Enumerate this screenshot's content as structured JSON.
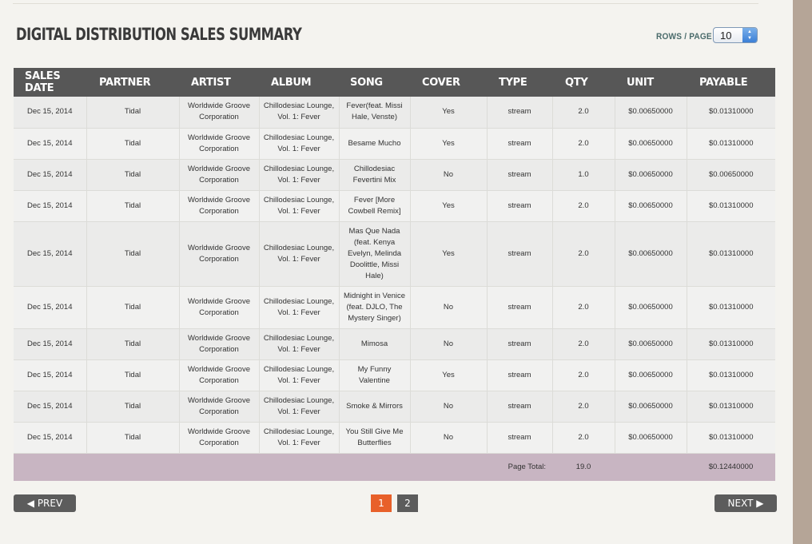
{
  "title": "DIGITAL DISTRIBUTION SALES SUMMARY",
  "rows_per_page": {
    "label": "ROWS / PAGE",
    "value": "10"
  },
  "columns": [
    "SALES DATE",
    "PARTNER",
    "ARTIST",
    "ALBUM",
    "SONG",
    "COVER",
    "TYPE",
    "QTY",
    "UNIT",
    "PAYABLE"
  ],
  "rows": [
    [
      "Dec 15, 2014",
      "Tidal",
      "Worldwide Groove Corporation",
      "Chillodesiac Lounge, Vol. 1: Fever",
      "Fever(feat. Missi Hale, Venste)",
      "Yes",
      "stream",
      "2.0",
      "$0.00650000",
      "$0.01310000"
    ],
    [
      "Dec 15, 2014",
      "Tidal",
      "Worldwide Groove Corporation",
      "Chillodesiac Lounge, Vol. 1: Fever",
      "Besame Mucho",
      "Yes",
      "stream",
      "2.0",
      "$0.00650000",
      "$0.01310000"
    ],
    [
      "Dec 15, 2014",
      "Tidal",
      "Worldwide Groove Corporation",
      "Chillodesiac Lounge, Vol. 1: Fever",
      "Chillodesiac Fevertini Mix",
      "No",
      "stream",
      "1.0",
      "$0.00650000",
      "$0.00650000"
    ],
    [
      "Dec 15, 2014",
      "Tidal",
      "Worldwide Groove Corporation",
      "Chillodesiac Lounge, Vol. 1: Fever",
      "Fever [More Cowbell Remix]",
      "Yes",
      "stream",
      "2.0",
      "$0.00650000",
      "$0.01310000"
    ],
    [
      "Dec 15, 2014",
      "Tidal",
      "Worldwide Groove Corporation",
      "Chillodesiac Lounge, Vol. 1: Fever",
      "Mas Que Nada (feat. Kenya Evelyn, Melinda Doolittle, Missi Hale)",
      "Yes",
      "stream",
      "2.0",
      "$0.00650000",
      "$0.01310000"
    ],
    [
      "Dec 15, 2014",
      "Tidal",
      "Worldwide Groove Corporation",
      "Chillodesiac Lounge, Vol. 1: Fever",
      "Midnight in Venice (feat. DJLO, The Mystery Singer)",
      "No",
      "stream",
      "2.0",
      "$0.00650000",
      "$0.01310000"
    ],
    [
      "Dec 15, 2014",
      "Tidal",
      "Worldwide Groove Corporation",
      "Chillodesiac Lounge, Vol. 1: Fever",
      "Mimosa",
      "No",
      "stream",
      "2.0",
      "$0.00650000",
      "$0.01310000"
    ],
    [
      "Dec 15, 2014",
      "Tidal",
      "Worldwide Groove Corporation",
      "Chillodesiac Lounge, Vol. 1: Fever",
      "My Funny Valentine",
      "Yes",
      "stream",
      "2.0",
      "$0.00650000",
      "$0.01310000"
    ],
    [
      "Dec 15, 2014",
      "Tidal",
      "Worldwide Groove Corporation",
      "Chillodesiac Lounge, Vol. 1: Fever",
      "Smoke & Mirrors",
      "No",
      "stream",
      "2.0",
      "$0.00650000",
      "$0.01310000"
    ],
    [
      "Dec 15, 2014",
      "Tidal",
      "Worldwide Groove Corporation",
      "Chillodesiac Lounge, Vol. 1: Fever",
      "You Still Give Me Butterflies",
      "No",
      "stream",
      "2.0",
      "$0.00650000",
      "$0.01310000"
    ]
  ],
  "totals": {
    "label": "Page Total:",
    "qty": "19.0",
    "payable": "$0.12440000"
  },
  "pagination": {
    "prev": "◀ PREV",
    "next": "NEXT ▶",
    "pages": [
      "1",
      "2"
    ],
    "current": "1"
  },
  "colors": {
    "header_bg": "#575757",
    "accent": "#e8602a",
    "total_bg": "#c8b5c2",
    "sidebar": "#b5a597"
  }
}
